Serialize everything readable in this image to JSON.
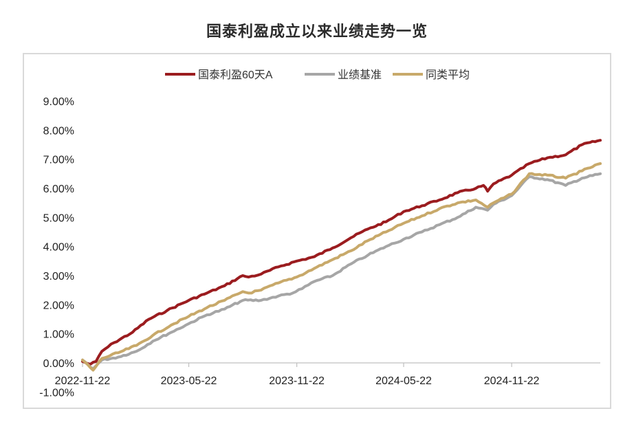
{
  "chart_data": {
    "type": "line",
    "title": "国泰利盈成立以来业绩走势一览",
    "ylim": [
      -1.0,
      9.0
    ],
    "yticks": [
      "9.00%",
      "8.00%",
      "7.00%",
      "6.00%",
      "5.00%",
      "4.00%",
      "3.00%",
      "2.00%",
      "1.00%",
      "0.00%",
      "-1.00%"
    ],
    "xticks": [
      "2022-11-22",
      "2023-05-22",
      "2023-11-22",
      "2024-05-22",
      "2024-11-22"
    ],
    "x_start": "2022-11-22",
    "x_end": "2025-04-22",
    "legend_position": "top-center",
    "grid": false,
    "series": [
      {
        "name": "国泰利盈60天A",
        "color": "#9b1c1f",
        "points": [
          [
            "2022-11-22",
            0.05
          ],
          [
            "2022-12-05",
            -0.05
          ],
          [
            "2022-12-15",
            0.05
          ],
          [
            "2022-12-25",
            0.4
          ],
          [
            "2023-01-15",
            0.7
          ],
          [
            "2023-02-15",
            1.05
          ],
          [
            "2023-03-15",
            1.5
          ],
          [
            "2023-04-15",
            1.8
          ],
          [
            "2023-05-22",
            2.15
          ],
          [
            "2023-06-22",
            2.4
          ],
          [
            "2023-07-22",
            2.65
          ],
          [
            "2023-08-22",
            3.0
          ],
          [
            "2023-09-01",
            2.95
          ],
          [
            "2023-09-22",
            3.05
          ],
          [
            "2023-10-22",
            3.3
          ],
          [
            "2023-11-22",
            3.5
          ],
          [
            "2023-12-22",
            3.65
          ],
          [
            "2024-01-22",
            3.95
          ],
          [
            "2024-02-22",
            4.3
          ],
          [
            "2024-03-22",
            4.6
          ],
          [
            "2024-04-22",
            4.85
          ],
          [
            "2024-05-22",
            5.2
          ],
          [
            "2024-06-22",
            5.4
          ],
          [
            "2024-07-22",
            5.6
          ],
          [
            "2024-08-22",
            5.85
          ],
          [
            "2024-09-22",
            6.0
          ],
          [
            "2024-10-05",
            6.1
          ],
          [
            "2024-10-12",
            5.9
          ],
          [
            "2024-10-22",
            6.15
          ],
          [
            "2024-11-22",
            6.45
          ],
          [
            "2024-12-22",
            6.85
          ],
          [
            "2025-01-22",
            7.05
          ],
          [
            "2025-02-22",
            7.15
          ],
          [
            "2025-03-22",
            7.5
          ],
          [
            "2025-04-22",
            7.65
          ]
        ]
      },
      {
        "name": "业绩基准",
        "color": "#a6a6a6",
        "points": [
          [
            "2022-11-22",
            0.1
          ],
          [
            "2022-12-10",
            -0.2
          ],
          [
            "2022-12-25",
            0.1
          ],
          [
            "2023-01-22",
            0.2
          ],
          [
            "2023-02-22",
            0.4
          ],
          [
            "2023-03-22",
            0.75
          ],
          [
            "2023-04-22",
            1.05
          ],
          [
            "2023-05-22",
            1.35
          ],
          [
            "2023-06-22",
            1.65
          ],
          [
            "2023-07-22",
            1.85
          ],
          [
            "2023-08-22",
            2.15
          ],
          [
            "2023-09-22",
            2.15
          ],
          [
            "2023-10-22",
            2.3
          ],
          [
            "2023-11-15",
            2.4
          ],
          [
            "2023-12-01",
            2.55
          ],
          [
            "2023-12-22",
            2.8
          ],
          [
            "2024-01-22",
            3.0
          ],
          [
            "2024-02-22",
            3.4
          ],
          [
            "2024-03-22",
            3.7
          ],
          [
            "2024-04-22",
            4.0
          ],
          [
            "2024-05-22",
            4.25
          ],
          [
            "2024-06-22",
            4.5
          ],
          [
            "2024-07-22",
            4.75
          ],
          [
            "2024-08-22",
            5.0
          ],
          [
            "2024-09-22",
            5.35
          ],
          [
            "2024-10-12",
            5.25
          ],
          [
            "2024-10-22",
            5.45
          ],
          [
            "2024-11-22",
            5.75
          ],
          [
            "2024-12-22",
            6.4
          ],
          [
            "2025-01-22",
            6.3
          ],
          [
            "2025-02-22",
            6.1
          ],
          [
            "2025-03-22",
            6.35
          ],
          [
            "2025-04-22",
            6.5
          ]
        ]
      },
      {
        "name": "同类平均",
        "color": "#c8a96a",
        "points": [
          [
            "2022-11-22",
            0.1
          ],
          [
            "2022-12-10",
            -0.25
          ],
          [
            "2022-12-25",
            0.15
          ],
          [
            "2023-01-22",
            0.35
          ],
          [
            "2023-02-22",
            0.6
          ],
          [
            "2023-03-22",
            0.95
          ],
          [
            "2023-04-22",
            1.3
          ],
          [
            "2023-05-22",
            1.6
          ],
          [
            "2023-06-22",
            1.9
          ],
          [
            "2023-07-22",
            2.15
          ],
          [
            "2023-08-22",
            2.45
          ],
          [
            "2023-09-01",
            2.4
          ],
          [
            "2023-09-22",
            2.5
          ],
          [
            "2023-10-22",
            2.75
          ],
          [
            "2023-11-22",
            2.95
          ],
          [
            "2023-12-22",
            3.25
          ],
          [
            "2024-01-22",
            3.55
          ],
          [
            "2024-02-22",
            3.85
          ],
          [
            "2024-03-22",
            4.2
          ],
          [
            "2024-04-22",
            4.5
          ],
          [
            "2024-05-22",
            4.8
          ],
          [
            "2024-06-22",
            5.05
          ],
          [
            "2024-07-22",
            5.3
          ],
          [
            "2024-08-22",
            5.5
          ],
          [
            "2024-09-22",
            5.6
          ],
          [
            "2024-10-12",
            5.35
          ],
          [
            "2024-10-22",
            5.5
          ],
          [
            "2024-11-22",
            5.8
          ],
          [
            "2024-12-22",
            6.5
          ],
          [
            "2025-01-22",
            6.45
          ],
          [
            "2025-02-22",
            6.35
          ],
          [
            "2025-03-22",
            6.6
          ],
          [
            "2025-04-22",
            6.85
          ]
        ]
      }
    ]
  }
}
